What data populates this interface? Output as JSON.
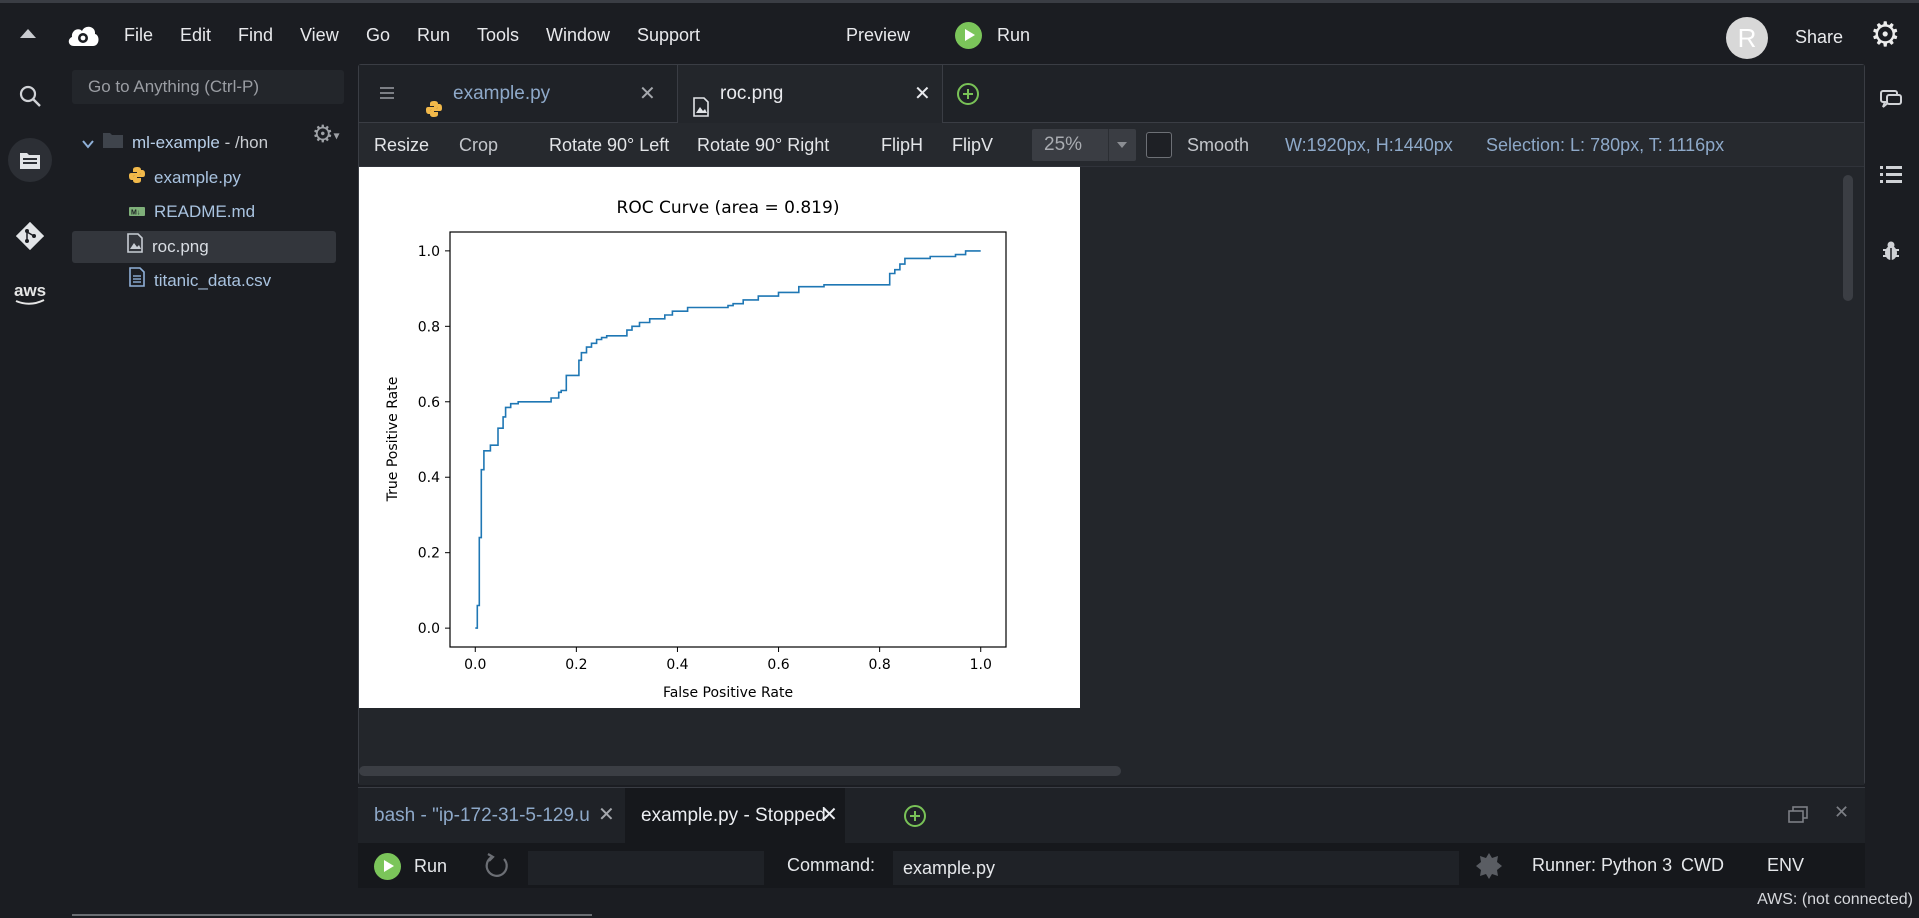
{
  "menu": {
    "items": [
      "File",
      "Edit",
      "Find",
      "View",
      "Go",
      "Run",
      "Tools",
      "Window",
      "Support"
    ],
    "preview_label": "Preview",
    "run_label": "Run",
    "avatar_initial": "R",
    "share_label": "Share"
  },
  "search": {
    "placeholder": "Go to Anything (Ctrl-P)"
  },
  "tree": {
    "root_label": "ml-example",
    "root_path": " - /hon",
    "files": [
      {
        "name": "example.py",
        "icon": "python-icon"
      },
      {
        "name": "README.md",
        "icon": "markdown-icon"
      },
      {
        "name": "roc.png",
        "icon": "image-icon"
      },
      {
        "name": "titanic_data.csv",
        "icon": "document-icon"
      }
    ]
  },
  "editor": {
    "tabs": [
      {
        "label": "example.py",
        "icon": "python-icon"
      },
      {
        "label": "roc.png",
        "icon": "image-icon"
      }
    ]
  },
  "toolbar": {
    "resize": "Resize",
    "crop": "Crop",
    "rotate_left": "Rotate 90° Left",
    "rotate_right": "Rotate 90° Right",
    "fliph": "FlipH",
    "flipv": "FlipV",
    "zoom": "25%",
    "smooth": "Smooth",
    "dimensions": "W:1920px, H:1440px",
    "selection": "Selection:  L: 780px, T: 1116px"
  },
  "chart_data": {
    "type": "line",
    "title": "ROC Curve (area = 0.819)",
    "xlabel": "False Positive Rate",
    "ylabel": "True Positive Rate",
    "xlim": [
      -0.05,
      1.05
    ],
    "ylim": [
      -0.05,
      1.05
    ],
    "xticks": [
      "0.0",
      "0.2",
      "0.4",
      "0.6",
      "0.8",
      "1.0"
    ],
    "yticks": [
      "0.0",
      "0.2",
      "0.4",
      "0.6",
      "0.8",
      "1.0"
    ],
    "color": "#1f77b4",
    "x": [
      0.0,
      0.004,
      0.004,
      0.008,
      0.008,
      0.012,
      0.012,
      0.017,
      0.017,
      0.021,
      0.021,
      0.03,
      0.03,
      0.045,
      0.045,
      0.055,
      0.055,
      0.06,
      0.06,
      0.07,
      0.07,
      0.085,
      0.085,
      0.15,
      0.15,
      0.165,
      0.165,
      0.17,
      0.17,
      0.18,
      0.18,
      0.205,
      0.205,
      0.21,
      0.21,
      0.22,
      0.22,
      0.23,
      0.23,
      0.24,
      0.24,
      0.25,
      0.25,
      0.26,
      0.26,
      0.3,
      0.3,
      0.31,
      0.31,
      0.325,
      0.325,
      0.345,
      0.345,
      0.375,
      0.375,
      0.39,
      0.39,
      0.42,
      0.42,
      0.5,
      0.5,
      0.51,
      0.51,
      0.53,
      0.53,
      0.56,
      0.56,
      0.6,
      0.6,
      0.64,
      0.64,
      0.69,
      0.69,
      0.82,
      0.82,
      0.83,
      0.83,
      0.84,
      0.84,
      0.85,
      0.85,
      0.9,
      0.9,
      0.95,
      0.95,
      0.97,
      0.97,
      1.0
    ],
    "y": [
      0.0,
      0.0,
      0.06,
      0.06,
      0.24,
      0.24,
      0.42,
      0.42,
      0.47,
      0.47,
      0.47,
      0.47,
      0.485,
      0.485,
      0.53,
      0.53,
      0.56,
      0.56,
      0.585,
      0.585,
      0.595,
      0.595,
      0.6,
      0.6,
      0.61,
      0.61,
      0.625,
      0.625,
      0.63,
      0.63,
      0.67,
      0.67,
      0.71,
      0.71,
      0.73,
      0.73,
      0.745,
      0.745,
      0.755,
      0.755,
      0.765,
      0.765,
      0.77,
      0.77,
      0.775,
      0.775,
      0.79,
      0.79,
      0.8,
      0.8,
      0.81,
      0.81,
      0.82,
      0.82,
      0.83,
      0.83,
      0.84,
      0.84,
      0.85,
      0.85,
      0.855,
      0.855,
      0.86,
      0.86,
      0.87,
      0.87,
      0.88,
      0.88,
      0.89,
      0.89,
      0.905,
      0.905,
      0.91,
      0.91,
      0.94,
      0.94,
      0.95,
      0.95,
      0.965,
      0.965,
      0.98,
      0.98,
      0.985,
      0.985,
      0.99,
      0.99,
      1.0,
      1.0
    ]
  },
  "console": {
    "tabs": [
      {
        "label": "bash - \"ip-172-31-5-129.u"
      },
      {
        "label": "example.py - Stopped"
      }
    ],
    "run_label": "Run",
    "command_label": "Command:",
    "command_value": "example.py",
    "runner": "Runner: Python 3",
    "cwd": "CWD",
    "env": "ENV"
  },
  "status": {
    "aws": "AWS: (not connected)"
  }
}
